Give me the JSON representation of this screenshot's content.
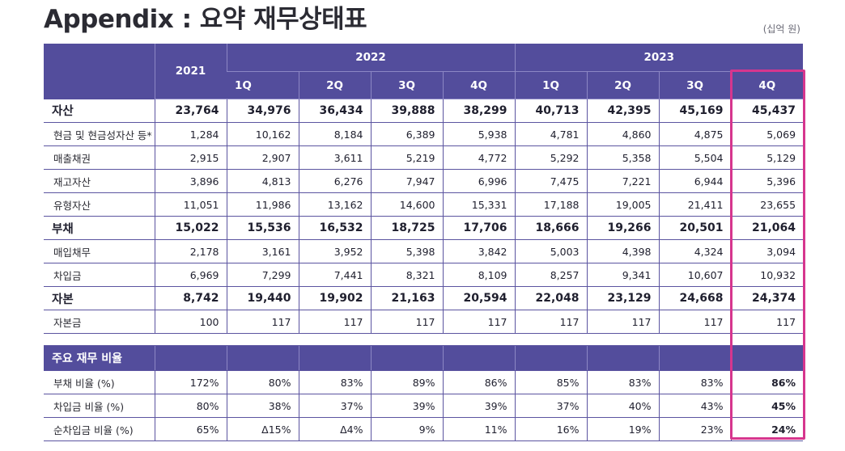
{
  "title": "Appendix : 요약 재무상태표",
  "unit": "(십억 원)",
  "highlight_color": "#d6368e",
  "header_color": "#534d9c",
  "header": {
    "year_2021": "2021",
    "year_2022": "2022",
    "year_2023": "2023",
    "q2022": [
      "1Q",
      "2Q",
      "3Q",
      "4Q"
    ],
    "q2023": [
      "1Q",
      "2Q",
      "3Q",
      "4Q"
    ]
  },
  "rows": [
    {
      "label": "자산",
      "values": [
        "23,764",
        "34,976",
        "36,434",
        "39,888",
        "38,299",
        "40,713",
        "42,395",
        "45,169",
        "45,437"
      ]
    },
    {
      "label": "현금 및 현금성자산 등*",
      "values": [
        "1,284",
        "10,162",
        "8,184",
        "6,389",
        "5,938",
        "4,781",
        "4,860",
        "4,875",
        "5,069"
      ]
    },
    {
      "label": "매출채권",
      "values": [
        "2,915",
        "2,907",
        "3,611",
        "5,219",
        "4,772",
        "5,292",
        "5,358",
        "5,504",
        "5,129"
      ]
    },
    {
      "label": "재고자산",
      "values": [
        "3,896",
        "4,813",
        "6,276",
        "7,947",
        "6,996",
        "7,475",
        "7,221",
        "6,944",
        "5,396"
      ]
    },
    {
      "label": "유형자산",
      "values": [
        "11,051",
        "11,986",
        "13,162",
        "14,600",
        "15,331",
        "17,188",
        "19,005",
        "21,411",
        "23,655"
      ]
    },
    {
      "label": "부채",
      "values": [
        "15,022",
        "15,536",
        "16,532",
        "18,725",
        "17,706",
        "18,666",
        "19,266",
        "20,501",
        "21,064"
      ]
    },
    {
      "label": "매입채무",
      "values": [
        "2,178",
        "3,161",
        "3,952",
        "5,398",
        "3,842",
        "5,003",
        "4,398",
        "4,324",
        "3,094"
      ]
    },
    {
      "label": "차입금",
      "values": [
        "6,969",
        "7,299",
        "7,441",
        "8,321",
        "8,109",
        "8,257",
        "9,341",
        "10,607",
        "10,932"
      ]
    },
    {
      "label": "자본",
      "values": [
        "8,742",
        "19,440",
        "19,902",
        "21,163",
        "20,594",
        "22,048",
        "23,129",
        "24,668",
        "24,374"
      ]
    },
    {
      "label": "자본금",
      "values": [
        "100",
        "117",
        "117",
        "117",
        "117",
        "117",
        "117",
        "117",
        "117"
      ]
    }
  ],
  "ratio_section": {
    "label": "주요 재무 비율"
  },
  "ratios": [
    {
      "label": "부채 비율 (%)",
      "values": [
        "172%",
        "80%",
        "83%",
        "89%",
        "86%",
        "85%",
        "83%",
        "83%",
        "86%"
      ]
    },
    {
      "label": "차입금 비율 (%)",
      "values": [
        "80%",
        "38%",
        "37%",
        "39%",
        "39%",
        "37%",
        "40%",
        "43%",
        "45%"
      ]
    },
    {
      "label": "순차입금 비율 (%)",
      "values": [
        "65%",
        "Δ15%",
        "Δ4%",
        "9%",
        "11%",
        "16%",
        "19%",
        "23%",
        "24%"
      ]
    }
  ]
}
